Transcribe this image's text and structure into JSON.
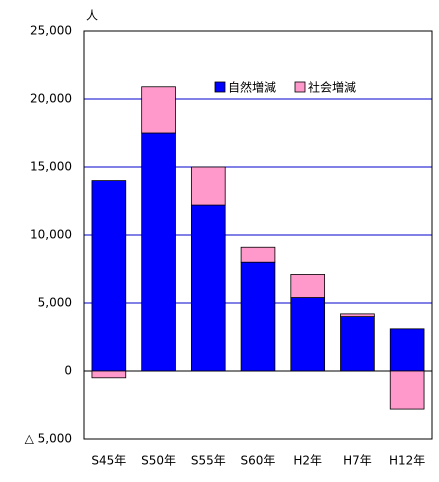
{
  "chart_data": {
    "type": "stacked_bar",
    "y_label": "人",
    "categories": [
      "S45年",
      "S50年",
      "S55年",
      "S60年",
      "H2年",
      "H7年",
      "H12年"
    ],
    "series": [
      {
        "name": "自然増減",
        "color": "#0000ff",
        "values": [
          14000,
          17500,
          12200,
          8000,
          5400,
          4000,
          3100
        ]
      },
      {
        "name": "社会増減",
        "color": "#ff99cc",
        "values": [
          -500,
          3400,
          2800,
          1100,
          1700,
          200,
          -2800
        ]
      }
    ],
    "ylim": [
      -5000,
      25000
    ],
    "yticks": [
      {
        "value": -5000,
        "label": "△ 5,000"
      },
      0,
      {
        "value": 5000,
        "label": "5,000"
      },
      {
        "value": 10000,
        "label": "10,000"
      },
      {
        "value": 15000,
        "label": "15,000"
      },
      {
        "value": 20000,
        "label": "20,000"
      },
      {
        "value": 25000,
        "label": "25,000"
      }
    ],
    "grid": true,
    "legend": "top-right"
  }
}
